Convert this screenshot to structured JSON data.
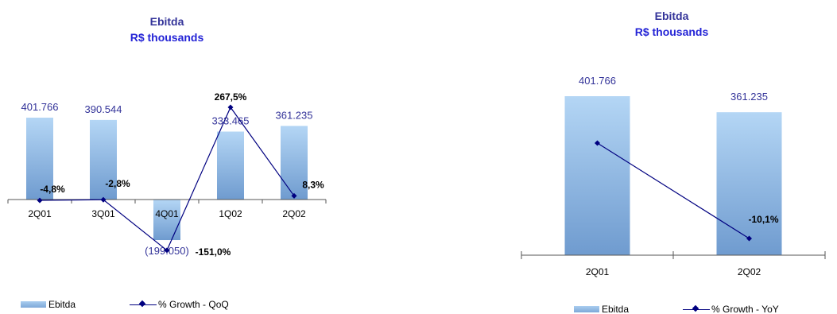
{
  "chart_data": [
    {
      "type": "bar",
      "title": "Ebitda",
      "subtitle": "R$ thousands",
      "categories": [
        "2Q01",
        "3Q01",
        "4Q01",
        "1Q02",
        "2Q02"
      ],
      "series": [
        {
          "name": "Ebitda",
          "type": "bar",
          "values": [
            401766,
            390544,
            -199050,
            333465,
            361235
          ],
          "labels": [
            "401.766",
            "390.544",
            "(199.050)",
            "333.465",
            "361.235"
          ]
        },
        {
          "name": "% Growth - QoQ",
          "type": "line",
          "values": [
            -4.8,
            -2.8,
            -151.0,
            267.5,
            8.3
          ],
          "labels": [
            "-4,8%",
            "-2,8%",
            "-151,0%",
            "267,5%",
            "8,3%"
          ]
        }
      ],
      "legend": "bottom-left",
      "colors": {
        "bar": "#8db8e6",
        "line": "#000080",
        "bar_label": "#333399"
      }
    },
    {
      "type": "bar",
      "title": "Ebitda",
      "subtitle": "R$ thousands",
      "categories": [
        "2Q01",
        "2Q02"
      ],
      "series": [
        {
          "name": "Ebitda",
          "type": "bar",
          "values": [
            401766,
            361235
          ],
          "labels": [
            "401.766",
            "361.235"
          ]
        },
        {
          "name": "% Growth - YoY",
          "type": "line",
          "values": [
            null,
            -10.1
          ],
          "labels": [
            "",
            "-10,1%"
          ]
        }
      ],
      "legend": "bottom",
      "colors": {
        "bar": "#8db8e6",
        "line": "#000080",
        "bar_label": "#333399"
      }
    }
  ]
}
